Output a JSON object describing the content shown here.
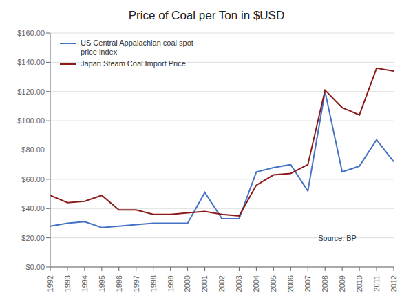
{
  "chart_data": {
    "type": "line",
    "title": "Price of Coal per Ton in $USD",
    "x": [
      1992,
      1993,
      1994,
      1995,
      1996,
      1997,
      1998,
      1999,
      2000,
      2001,
      2002,
      2003,
      2004,
      2005,
      2006,
      2007,
      2008,
      2009,
      2010,
      2011,
      2012
    ],
    "series": [
      {
        "name": "US Central Appalachian coal spot\nprice index",
        "color": "#4472C4",
        "values": [
          28,
          30,
          31,
          27,
          28,
          29,
          30,
          30,
          30,
          51,
          33,
          33,
          65,
          68,
          70,
          52,
          120,
          65,
          69,
          87,
          72
        ]
      },
      {
        "name": "Japan Steam Coal Import Price",
        "color": "#8B1A1A",
        "values": [
          49,
          44,
          45,
          49,
          39,
          39,
          36,
          36,
          37,
          38,
          36,
          35,
          56,
          63,
          64,
          70,
          121,
          109,
          104,
          136,
          134
        ]
      }
    ],
    "xlim": [
      1992,
      2012
    ],
    "xticks": [
      1992,
      1993,
      1994,
      1995,
      1996,
      1997,
      1998,
      1999,
      2000,
      2001,
      2002,
      2003,
      2004,
      2005,
      2006,
      2007,
      2008,
      2009,
      2010,
      2011,
      2012
    ],
    "ylim": [
      0,
      160
    ],
    "yticks": [
      {
        "value": 0,
        "label": "$0.00"
      },
      {
        "value": 20,
        "label": "$20.00"
      },
      {
        "value": 40,
        "label": "$40.00"
      },
      {
        "value": 60,
        "label": "$60.00"
      },
      {
        "value": 80,
        "label": "$80.00"
      },
      {
        "value": 100,
        "label": "$100.00"
      },
      {
        "value": 120,
        "label": "$120.00"
      },
      {
        "value": 140,
        "label": "$140.00"
      },
      {
        "value": 160,
        "label": "$160.00"
      }
    ],
    "grid": "y",
    "legend": "upper left",
    "annotations": [
      "Source: BP"
    ]
  }
}
